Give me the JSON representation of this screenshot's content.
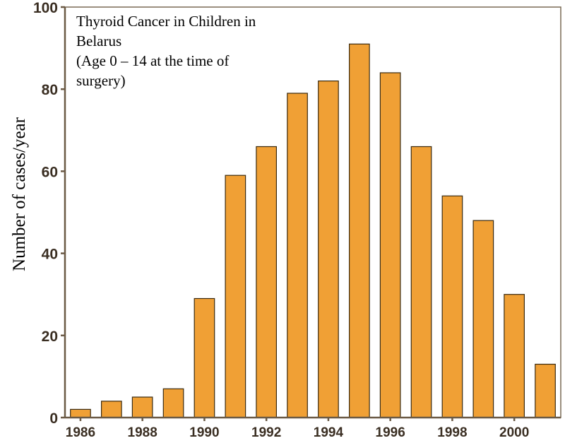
{
  "chart_data": {
    "type": "bar",
    "title_lines": [
      "Thyroid Cancer in Children in",
      "Belarus",
      "(Age 0 – 14 at the time of",
      "surgery)"
    ],
    "xlabel": "",
    "ylabel": "Number of cases/year",
    "categories": [
      "1986",
      "1987",
      "1988",
      "1989",
      "1990",
      "1991",
      "1992",
      "1993",
      "1994",
      "1995",
      "1996",
      "1997",
      "1998",
      "1999",
      "2000",
      "2001"
    ],
    "values": [
      2,
      4,
      5,
      7,
      29,
      59,
      66,
      79,
      82,
      91,
      84,
      66,
      54,
      48,
      30,
      13
    ],
    "xtick_labels": [
      "1986",
      "1988",
      "1990",
      "1992",
      "1994",
      "1996",
      "1998",
      "2000"
    ],
    "yticks": [
      "0",
      "20",
      "40",
      "60",
      "80",
      "100"
    ],
    "ylim": [
      0,
      100
    ],
    "bar_color": "#f0a035",
    "grid": false,
    "legend": "none"
  }
}
